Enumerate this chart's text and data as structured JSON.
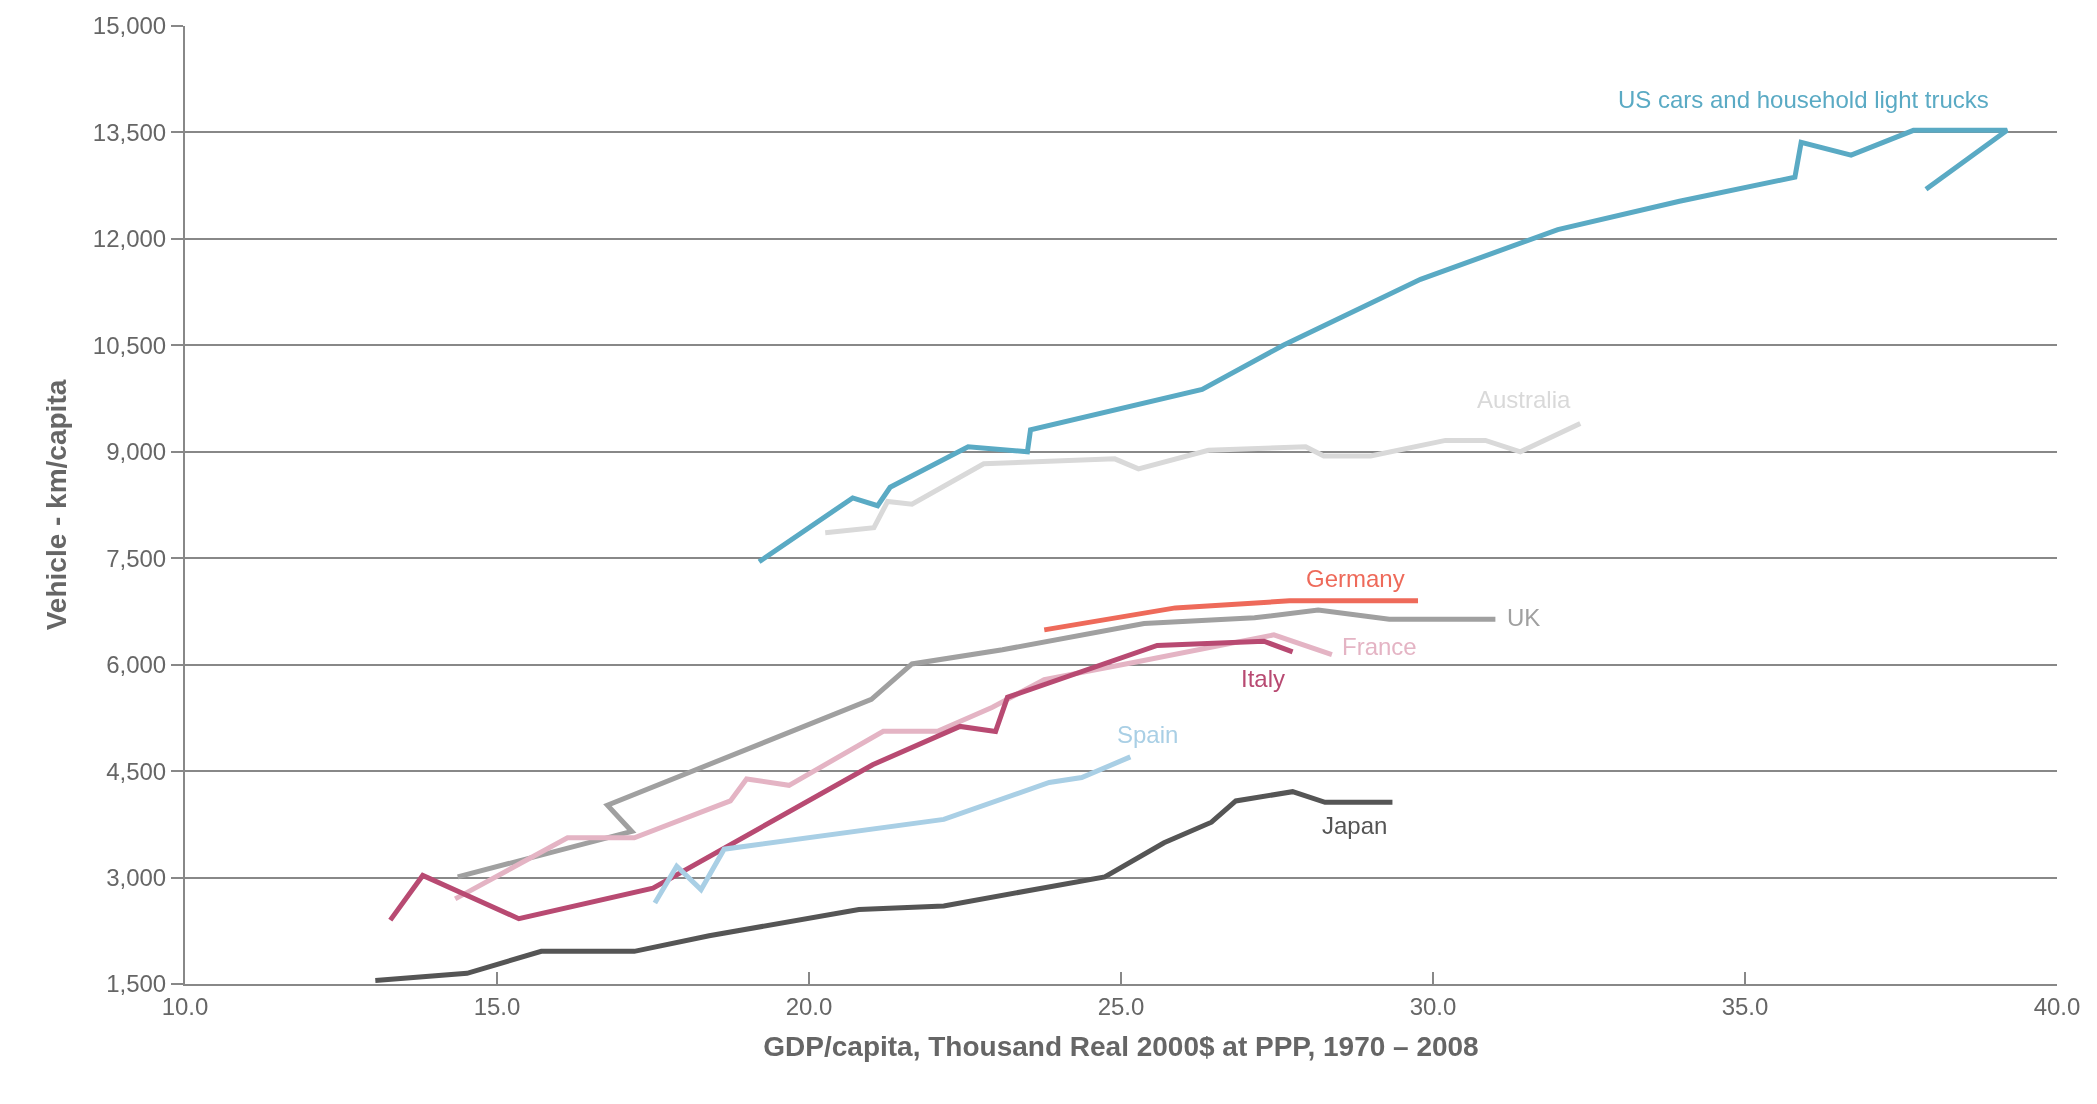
{
  "chart_data": {
    "type": "line",
    "xlabel": "GDP/capita, Thousand Real 2000$ at PPP, 1970 – 2008",
    "ylabel": "Vehicle - km/capita",
    "xlim": [
      10,
      40
    ],
    "ylim": [
      1500,
      15000
    ],
    "xticks": [
      {
        "value": 10,
        "label": "10.0"
      },
      {
        "value": 15,
        "label": "15.0"
      },
      {
        "value": 20,
        "label": "20.0"
      },
      {
        "value": 25,
        "label": "25.0"
      },
      {
        "value": 30,
        "label": "30.0"
      },
      {
        "value": 35,
        "label": "35.0"
      },
      {
        "value": 40,
        "label": "40.0"
      }
    ],
    "yticks": [
      {
        "value": 1500,
        "label": "1,500"
      },
      {
        "value": 3000,
        "label": "3,000"
      },
      {
        "value": 4500,
        "label": "4,500"
      },
      {
        "value": 6000,
        "label": "6,000"
      },
      {
        "value": 7500,
        "label": "7,500"
      },
      {
        "value": 9000,
        "label": "9,000"
      },
      {
        "value": 10500,
        "label": "10,500"
      },
      {
        "value": 12000,
        "label": "12,000"
      },
      {
        "value": 13500,
        "label": "13,500"
      },
      {
        "value": 15000,
        "label": "15,000"
      }
    ],
    "grid": "y",
    "legend": false,
    "marker": "none",
    "line_style": "solid",
    "series": [
      {
        "name": "US cars and household light trucks",
        "color": "#5aaac4",
        "x": [
          19.2,
          20.7,
          21.1,
          21.3,
          22.55,
          23.5,
          23.55,
          26.3,
          27.6,
          29.8,
          32.0,
          33.95,
          35.8,
          35.9,
          36.7,
          37.7,
          39.2,
          37.9
        ],
        "values": [
          7450,
          8350,
          8240,
          8500,
          9070,
          9000,
          9310,
          9880,
          10500,
          11430,
          12130,
          12530,
          12870,
          13360,
          13180,
          13530,
          13530,
          12700
        ]
      },
      {
        "name": "Australia",
        "color": "#d9d9d9",
        "x": [
          20.26,
          21.04,
          21.26,
          21.65,
          22.8,
          24.9,
          25.28,
          26.4,
          27.96,
          28.25,
          29.0,
          30.2,
          30.84,
          31.4,
          32.36
        ],
        "values": [
          7860,
          7930,
          8300,
          8260,
          8830,
          8900,
          8760,
          9020,
          9070,
          8940,
          8940,
          9160,
          9160,
          9000,
          9400
        ]
      },
      {
        "name": "Germany",
        "color": "#ee6a5a",
        "x": [
          23.77,
          25.87,
          27.7,
          29.76
        ],
        "values": [
          6490,
          6800,
          6900,
          6900
        ]
      },
      {
        "name": "UK",
        "color": "#a0a0a0",
        "x": [
          14.37,
          17.16,
          16.77,
          21.0,
          21.65,
          23.1,
          25.37,
          27.14,
          28.16,
          29.3,
          31.0
        ],
        "values": [
          3010,
          3650,
          4020,
          5510,
          6010,
          6210,
          6580,
          6660,
          6770,
          6640,
          6640
        ]
      },
      {
        "name": "France",
        "color": "#e4b4c4",
        "x": [
          14.33,
          16.13,
          17.2,
          18.74,
          19.0,
          19.68,
          21.19,
          22.06,
          22.94,
          23.77,
          25.2,
          27.45,
          28.38
        ],
        "values": [
          2700,
          3560,
          3560,
          4080,
          4390,
          4300,
          5060,
          5060,
          5400,
          5790,
          6030,
          6420,
          6140
        ]
      },
      {
        "name": "Italy",
        "color": "#b84a72",
        "x": [
          13.29,
          13.81,
          15.35,
          17.5,
          21.02,
          22.42,
          22.99,
          23.18,
          25.58,
          27.29,
          27.75
        ],
        "values": [
          2400,
          3030,
          2420,
          2850,
          4590,
          5130,
          5060,
          5540,
          6270,
          6330,
          6180
        ]
      },
      {
        "name": "Spain",
        "color": "#a9cfe5",
        "x": [
          17.53,
          17.88,
          18.27,
          18.64,
          22.16,
          23.85,
          24.37,
          25.15
        ],
        "values": [
          2640,
          3160,
          2830,
          3400,
          3820,
          4340,
          4410,
          4700
        ]
      },
      {
        "name": "Japan",
        "color": "#555555",
        "x": [
          13.05,
          14.52,
          15.71,
          17.2,
          18.4,
          20.8,
          22.16,
          24.74,
          25.69,
          26.45,
          26.84,
          27.75,
          28.27,
          29.35
        ],
        "values": [
          1550,
          1650,
          1960,
          1960,
          2180,
          2550,
          2600,
          3010,
          3490,
          3780,
          4080,
          4210,
          4060,
          4060
        ]
      }
    ]
  }
}
